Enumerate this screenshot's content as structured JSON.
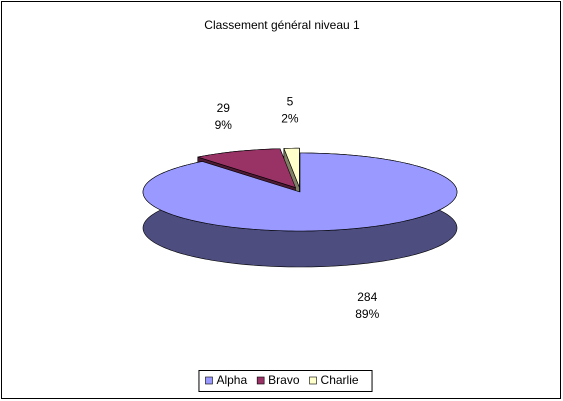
{
  "chart_data": {
    "type": "pie3d",
    "title": "Classement général niveau 1",
    "categories": [
      "Alpha",
      "Bravo",
      "Charlie"
    ],
    "values": [
      284,
      29,
      5
    ],
    "percent_labels": [
      "89%",
      "9%",
      "2%"
    ],
    "colors": [
      "#9999ff",
      "#993366",
      "#ffffcc"
    ],
    "side_colors": [
      "#4d4d80",
      "#4d1a33",
      "#808066"
    ],
    "exploded": [
      false,
      true,
      true
    ],
    "legend": "bottom"
  }
}
